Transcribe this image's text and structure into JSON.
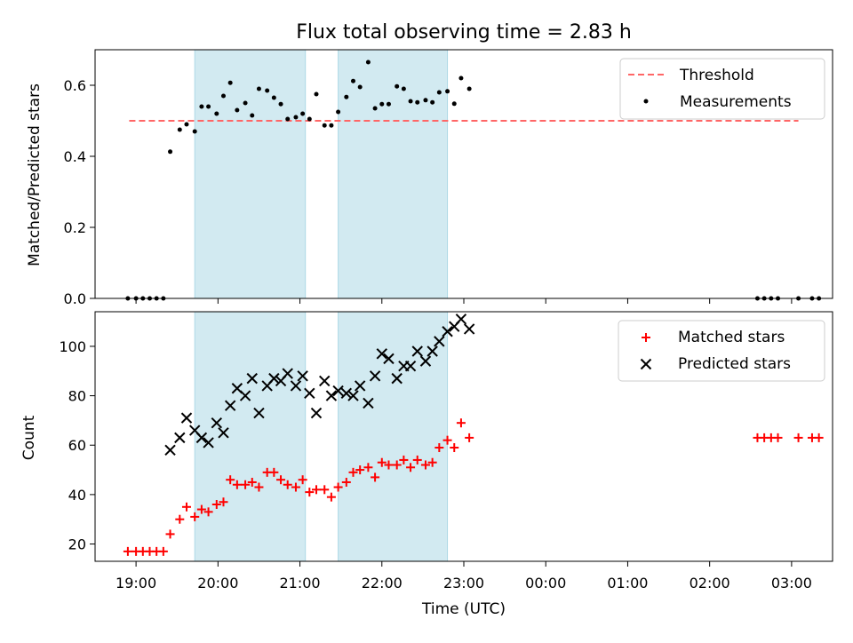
{
  "chart_data": [
    {
      "type": "scatter",
      "title": "Flux total observing time = 2.83 h",
      "ylabel": "Matched/Predicted stars",
      "xlim": [
        "18:30",
        "03:30"
      ],
      "ylim": [
        0,
        0.7
      ],
      "yticks": [
        "0.0",
        "0.2",
        "0.4",
        "0.6"
      ],
      "shaded_intervals": [
        [
          "19:43",
          "21:04"
        ],
        [
          "21:28",
          "22:48"
        ]
      ],
      "shade_color": "#add8e6",
      "threshold": {
        "label": "Threshold",
        "y": 0.5,
        "x_range": [
          "18:55",
          "03:05"
        ],
        "color": "#ff6666"
      },
      "measurements": {
        "label": "Measurements",
        "color": "#000000",
        "points": [
          [
            "18:54",
            0
          ],
          [
            "19:00",
            0
          ],
          [
            "19:05",
            0
          ],
          [
            "19:10",
            0
          ],
          [
            "19:15",
            0
          ],
          [
            "19:20",
            0
          ],
          [
            "19:25",
            0.413
          ],
          [
            "19:32",
            0.475
          ],
          [
            "19:37",
            0.49
          ],
          [
            "19:43",
            0.47
          ],
          [
            "19:48",
            0.54
          ],
          [
            "19:53",
            0.54
          ],
          [
            "19:59",
            0.52
          ],
          [
            "20:04",
            0.57
          ],
          [
            "20:09",
            0.607
          ],
          [
            "20:14",
            0.53
          ],
          [
            "20:20",
            0.55
          ],
          [
            "20:25",
            0.515
          ],
          [
            "20:30",
            0.59
          ],
          [
            "20:36",
            0.585
          ],
          [
            "20:41",
            0.565
          ],
          [
            "20:46",
            0.547
          ],
          [
            "20:51",
            0.505
          ],
          [
            "20:57",
            0.51
          ],
          [
            "21:02",
            0.52
          ],
          [
            "21:07",
            0.505
          ],
          [
            "21:12",
            0.575
          ],
          [
            "21:18",
            0.487
          ],
          [
            "21:23",
            0.487
          ],
          [
            "21:28",
            0.525
          ],
          [
            "21:34",
            0.567
          ],
          [
            "21:39",
            0.612
          ],
          [
            "21:44",
            0.595
          ],
          [
            "21:50",
            0.665
          ],
          [
            "21:55",
            0.535
          ],
          [
            "22:00",
            0.547
          ],
          [
            "22:05",
            0.547
          ],
          [
            "22:11",
            0.597
          ],
          [
            "22:16",
            0.59
          ],
          [
            "22:21",
            0.555
          ],
          [
            "22:26",
            0.552
          ],
          [
            "22:32",
            0.558
          ],
          [
            "22:37",
            0.552
          ],
          [
            "22:42",
            0.58
          ],
          [
            "22:48",
            0.583
          ],
          [
            "22:53",
            0.548
          ],
          [
            "22:58",
            0.62
          ],
          [
            "23:04",
            0.59
          ],
          [
            "02:35",
            0
          ],
          [
            "02:40",
            0
          ],
          [
            "02:45",
            0
          ],
          [
            "02:50",
            0
          ],
          [
            "03:05",
            0
          ],
          [
            "03:15",
            0
          ],
          [
            "03:20",
            0
          ]
        ]
      }
    },
    {
      "type": "scatter",
      "xlabel": "Time (UTC)",
      "ylabel": "Count",
      "xlim": [
        "18:30",
        "03:30"
      ],
      "xticks": [
        "19:00",
        "20:00",
        "21:00",
        "22:00",
        "23:00",
        "00:00",
        "01:00",
        "02:00",
        "03:00"
      ],
      "ylim": [
        13,
        114
      ],
      "yticks": [
        "20",
        "40",
        "60",
        "80",
        "100"
      ],
      "shaded_intervals": [
        [
          "19:43",
          "21:04"
        ],
        [
          "21:28",
          "22:48"
        ]
      ],
      "shade_color": "#add8e6",
      "series": [
        {
          "name": "Matched stars",
          "marker": "+",
          "color": "#ff0000",
          "points": [
            [
              "18:54",
              17
            ],
            [
              "19:00",
              17
            ],
            [
              "19:05",
              17
            ],
            [
              "19:10",
              17
            ],
            [
              "19:15",
              17
            ],
            [
              "19:20",
              17
            ],
            [
              "19:25",
              24
            ],
            [
              "19:32",
              30
            ],
            [
              "19:37",
              35
            ],
            [
              "19:43",
              31
            ],
            [
              "19:48",
              34
            ],
            [
              "19:53",
              33
            ],
            [
              "19:59",
              36
            ],
            [
              "20:04",
              37
            ],
            [
              "20:09",
              46
            ],
            [
              "20:14",
              44
            ],
            [
              "20:20",
              44
            ],
            [
              "20:25",
              45
            ],
            [
              "20:30",
              43
            ],
            [
              "20:36",
              49
            ],
            [
              "20:41",
              49
            ],
            [
              "20:46",
              46
            ],
            [
              "20:51",
              44
            ],
            [
              "20:57",
              43
            ],
            [
              "21:02",
              46
            ],
            [
              "21:07",
              41
            ],
            [
              "21:12",
              42
            ],
            [
              "21:18",
              42
            ],
            [
              "21:23",
              39
            ],
            [
              "21:28",
              43
            ],
            [
              "21:34",
              45
            ],
            [
              "21:39",
              49
            ],
            [
              "21:44",
              50
            ],
            [
              "21:50",
              51
            ],
            [
              "21:55",
              47
            ],
            [
              "22:00",
              53
            ],
            [
              "22:05",
              52
            ],
            [
              "22:11",
              52
            ],
            [
              "22:16",
              54
            ],
            [
              "22:21",
              51
            ],
            [
              "22:26",
              54
            ],
            [
              "22:32",
              52
            ],
            [
              "22:37",
              53
            ],
            [
              "22:42",
              59
            ],
            [
              "22:48",
              62
            ],
            [
              "22:53",
              59
            ],
            [
              "22:58",
              69
            ],
            [
              "23:04",
              63
            ],
            [
              "02:35",
              63
            ],
            [
              "02:40",
              63
            ],
            [
              "02:45",
              63
            ],
            [
              "02:50",
              63
            ],
            [
              "03:05",
              63
            ],
            [
              "03:15",
              63
            ],
            [
              "03:20",
              63
            ]
          ]
        },
        {
          "name": "Predicted stars",
          "marker": "x",
          "color": "#000000",
          "points": [
            [
              "19:25",
              58
            ],
            [
              "19:32",
              63
            ],
            [
              "19:37",
              71
            ],
            [
              "19:43",
              66
            ],
            [
              "19:48",
              63
            ],
            [
              "19:53",
              61
            ],
            [
              "19:59",
              69
            ],
            [
              "20:04",
              65
            ],
            [
              "20:09",
              76
            ],
            [
              "20:14",
              83
            ],
            [
              "20:20",
              80
            ],
            [
              "20:25",
              87
            ],
            [
              "20:30",
              73
            ],
            [
              "20:36",
              84
            ],
            [
              "20:41",
              87
            ],
            [
              "20:46",
              86
            ],
            [
              "20:51",
              89
            ],
            [
              "20:57",
              84
            ],
            [
              "21:02",
              88
            ],
            [
              "21:07",
              81
            ],
            [
              "21:12",
              73
            ],
            [
              "21:18",
              86
            ],
            [
              "21:23",
              80
            ],
            [
              "21:28",
              82
            ],
            [
              "21:34",
              81
            ],
            [
              "21:39",
              80
            ],
            [
              "21:44",
              84
            ],
            [
              "21:50",
              77
            ],
            [
              "21:55",
              88
            ],
            [
              "22:00",
              97
            ],
            [
              "22:05",
              95
            ],
            [
              "22:11",
              87
            ],
            [
              "22:16",
              92
            ],
            [
              "22:21",
              92
            ],
            [
              "22:26",
              98
            ],
            [
              "22:32",
              94
            ],
            [
              "22:37",
              98
            ],
            [
              "22:42",
              102
            ],
            [
              "22:48",
              106
            ],
            [
              "22:53",
              108
            ],
            [
              "22:58",
              111
            ],
            [
              "23:04",
              107
            ]
          ]
        }
      ]
    }
  ]
}
